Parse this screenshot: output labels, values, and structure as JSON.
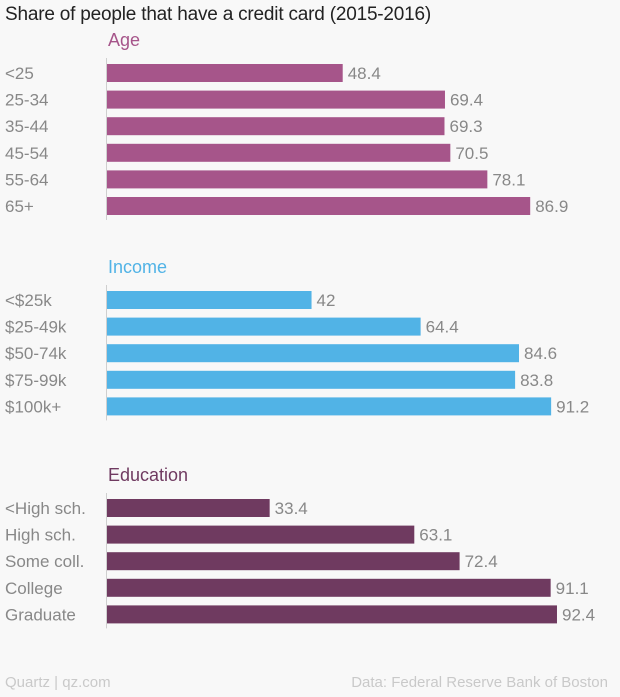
{
  "title": "Share of people that have a credit card (2015-2016)",
  "footer": {
    "left": "Quartz | qz.com",
    "right": "Data: Federal Reserve Bank of Boston"
  },
  "chart_data": [
    {
      "type": "bar",
      "orientation": "horizontal",
      "title": "Age",
      "color": "#a6558a",
      "categories": [
        "<25",
        "25-34",
        "35-44",
        "45-54",
        "55-64",
        "65+"
      ],
      "values": [
        48.4,
        69.4,
        69.3,
        70.5,
        78.1,
        86.9
      ],
      "xlim": [
        0,
        100
      ]
    },
    {
      "type": "bar",
      "orientation": "horizontal",
      "title": "Income",
      "color": "#51b3e6",
      "categories": [
        "<$25k",
        "$25-49k",
        "$50-74k",
        "$75-99k",
        "$100k+"
      ],
      "values": [
        42,
        64.4,
        84.6,
        83.8,
        91.2
      ],
      "xlim": [
        0,
        100
      ]
    },
    {
      "type": "bar",
      "orientation": "horizontal",
      "title": "Education",
      "color": "#6f3a60",
      "categories": [
        "<High sch.",
        "High sch.",
        "Some coll.",
        "College",
        "Graduate"
      ],
      "values": [
        33.4,
        63.1,
        72.4,
        91.1,
        92.4
      ],
      "xlim": [
        0,
        100
      ]
    }
  ]
}
